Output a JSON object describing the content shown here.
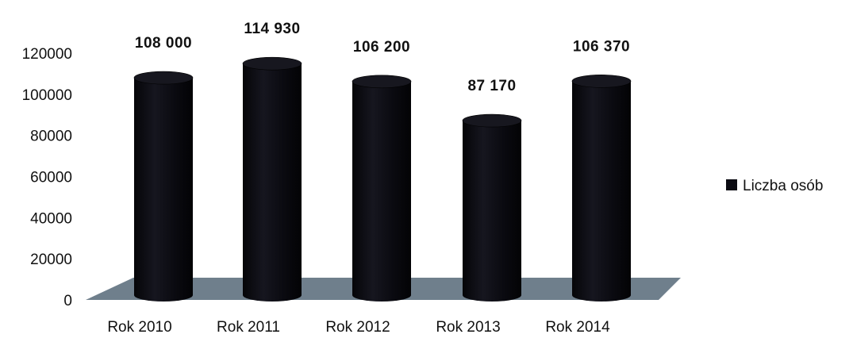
{
  "chart_data": {
    "type": "bar",
    "categories": [
      "Rok 2010",
      "Rok 2011",
      "Rok 2012",
      "Rok 2013",
      "Rok 2014"
    ],
    "series": [
      {
        "name": "Liczba osób",
        "values": [
          108000,
          114930,
          106200,
          87170,
          106370
        ]
      }
    ],
    "data_labels": [
      "108 000",
      "114 930",
      "106 200",
      "87 170",
      "106 370"
    ],
    "yticks": [
      0,
      20000,
      40000,
      60000,
      80000,
      100000,
      120000
    ],
    "ylim": [
      0,
      120000
    ],
    "title": "",
    "xlabel": "",
    "ylabel": "",
    "legend_position": "right",
    "grid": false,
    "style": "3d-cylinder",
    "colors": {
      "bar": "#0b0b12",
      "floor": "#6f7f8c"
    }
  }
}
